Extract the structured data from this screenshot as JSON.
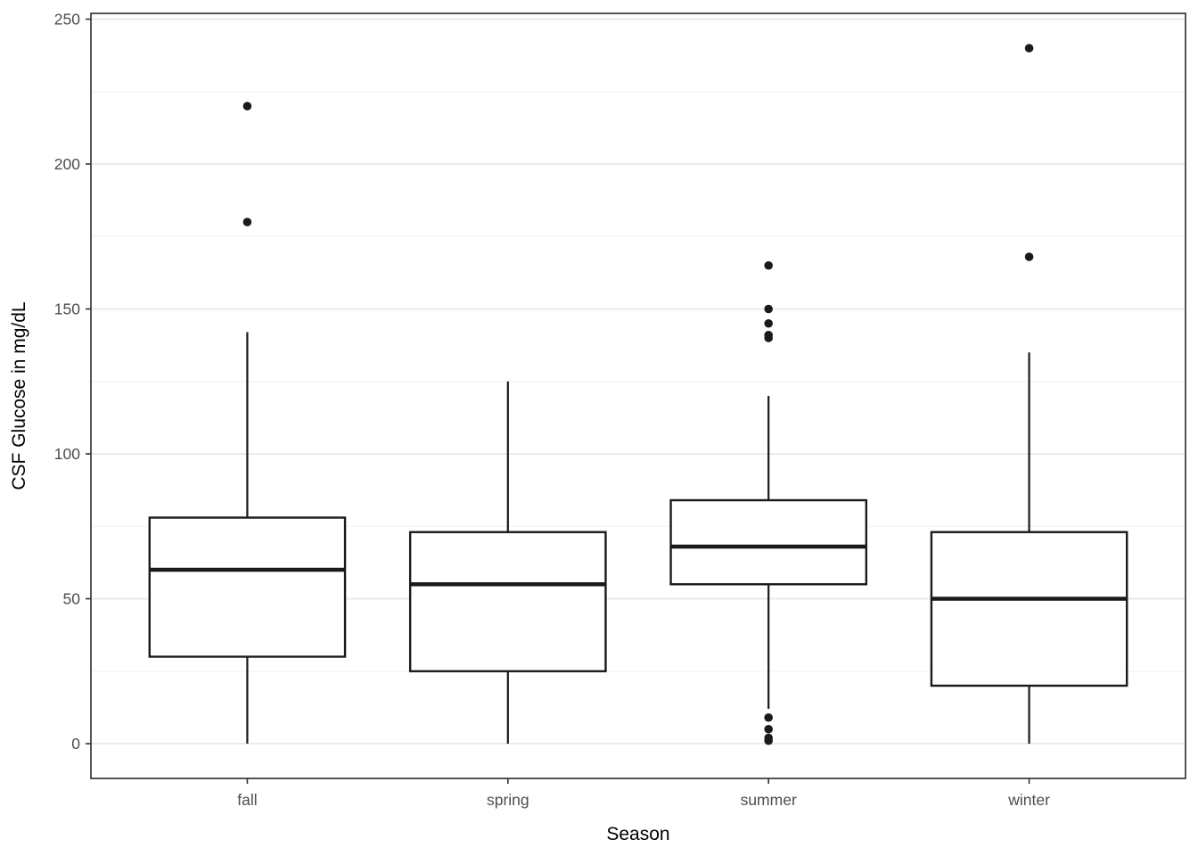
{
  "chart_data": {
    "type": "boxplot",
    "title": "",
    "xlabel": "Season",
    "ylabel": "CSF Glucose in mg/dL",
    "categories": [
      "fall",
      "spring",
      "summer",
      "winter"
    ],
    "y_axis": {
      "min": -12,
      "max": 252,
      "major_ticks": [
        0,
        50,
        100,
        150,
        200,
        250
      ],
      "minor_ticks": [
        25,
        75,
        125,
        175,
        225
      ]
    },
    "grid": "major and minor horizontal gridlines, white panel, dark panel border",
    "legend": "none",
    "series": [
      {
        "category": "fall",
        "whisker_low": 0,
        "q1": 30,
        "median": 60,
        "q3": 78,
        "whisker_high": 142,
        "outliers": [
          180,
          220
        ]
      },
      {
        "category": "spring",
        "whisker_low": 0,
        "q1": 25,
        "median": 55,
        "q3": 73,
        "whisker_high": 125,
        "outliers": []
      },
      {
        "category": "summer",
        "whisker_low": 12,
        "q1": 55,
        "median": 68,
        "q3": 84,
        "whisker_high": 120,
        "outliers": [
          165,
          150,
          145,
          141,
          140,
          9,
          5,
          2,
          1
        ]
      },
      {
        "category": "winter",
        "whisker_low": 0,
        "q1": 20,
        "median": 50,
        "q3": 73,
        "whisker_high": 135,
        "outliers": [
          240,
          168
        ]
      }
    ],
    "colors": {
      "box_stroke": "#1a1a1a",
      "box_fill": "#ffffff",
      "outlier_fill": "#1a1a1a",
      "grid_major": "#ebebeb",
      "grid_minor": "#f5f5f5",
      "panel_border": "#2b2b2b",
      "tick_mark": "#333333",
      "tick_label": "#4d4d4d",
      "axis_title": "#000000",
      "background": "#ffffff"
    }
  }
}
